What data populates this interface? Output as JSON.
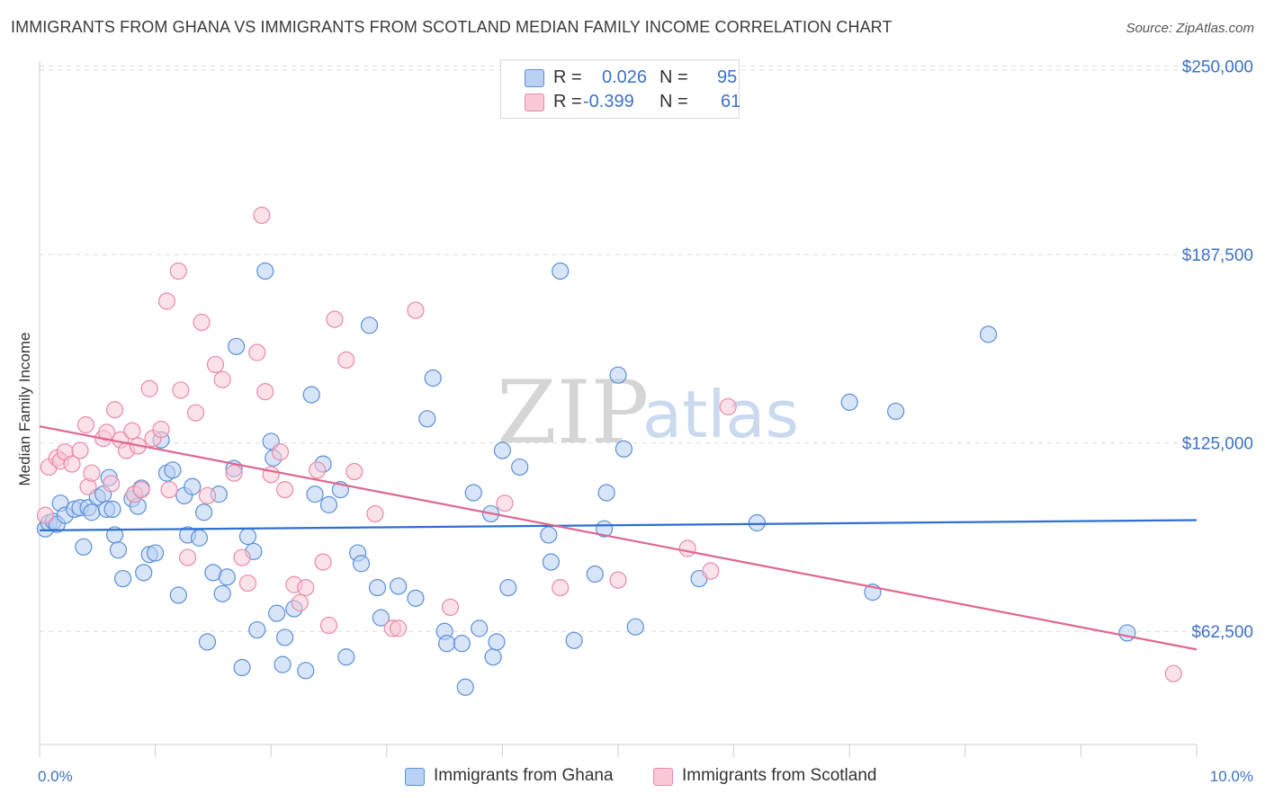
{
  "title": "IMMIGRANTS FROM GHANA VS IMMIGRANTS FROM SCOTLAND MEDIAN FAMILY INCOME CORRELATION CHART",
  "source": "Source: ZipAtlas.com",
  "watermark": {
    "part1": "ZIP",
    "part2": "atlas"
  },
  "legend": {
    "rows": [
      {
        "r_label": "R =",
        "r_value": "0.026",
        "n_label": "N =",
        "n_value": "95"
      },
      {
        "r_label": "R =",
        "r_value": "-0.399",
        "n_label": "N =",
        "n_value": "61"
      }
    ]
  },
  "bottom_legend": [
    "Immigrants from Ghana",
    "Immigrants from Scotland"
  ],
  "chart_data": {
    "type": "scatter",
    "title": "IMMIGRANTS FROM GHANA VS IMMIGRANTS FROM SCOTLAND MEDIAN FAMILY INCOME CORRELATION CHART",
    "xlabel": "",
    "ylabel": "Median Family Income",
    "xlim": [
      0,
      10
    ],
    "ylim": [
      25000,
      254000
    ],
    "x_tick_labels": [
      "0.0%",
      "10.0%"
    ],
    "y_ticks": [
      62500,
      125000,
      187500,
      250000
    ],
    "y_tick_labels": [
      "$62,500",
      "$125,000",
      "$187,500",
      "$250,000"
    ],
    "grid": true,
    "legend_position": "top-center",
    "colors": {
      "ghana_fill": "#b8d0f2",
      "ghana_stroke": "#5b8fd6",
      "ghana_line": "#2e6fcf",
      "scotland_fill": "#f8c8d6",
      "scotland_stroke": "#e88aa8",
      "scotland_line": "#e0668f",
      "tick_text": "#3d72c4"
    },
    "series": [
      {
        "name": "Immigrants from Ghana",
        "trend": {
          "x": [
            0,
            10
          ],
          "y": [
            96000,
            99400
          ]
        },
        "points": [
          [
            0.05,
            96500
          ],
          [
            0.08,
            98500
          ],
          [
            0.12,
            99000
          ],
          [
            0.15,
            98000
          ],
          [
            0.18,
            105000
          ],
          [
            0.22,
            101000
          ],
          [
            0.3,
            103000
          ],
          [
            0.35,
            103500
          ],
          [
            0.38,
            90500
          ],
          [
            0.42,
            103500
          ],
          [
            0.45,
            102000
          ],
          [
            0.5,
            107000
          ],
          [
            0.55,
            108000
          ],
          [
            0.6,
            113500
          ],
          [
            0.58,
            103000
          ],
          [
            0.63,
            103000
          ],
          [
            0.65,
            94500
          ],
          [
            0.68,
            89500
          ],
          [
            0.72,
            80000
          ],
          [
            0.8,
            106500
          ],
          [
            0.82,
            108000
          ],
          [
            0.85,
            104000
          ],
          [
            0.88,
            110000
          ],
          [
            0.9,
            82000
          ],
          [
            0.95,
            88000
          ],
          [
            1.0,
            88500
          ],
          [
            1.05,
            126000
          ],
          [
            1.1,
            115000
          ],
          [
            1.15,
            116000
          ],
          [
            1.2,
            74500
          ],
          [
            1.25,
            107500
          ],
          [
            1.28,
            94500
          ],
          [
            1.32,
            110500
          ],
          [
            1.38,
            93500
          ],
          [
            1.42,
            102000
          ],
          [
            1.45,
            59000
          ],
          [
            1.5,
            82000
          ],
          [
            1.55,
            108000
          ],
          [
            1.58,
            75000
          ],
          [
            1.62,
            80500
          ],
          [
            1.68,
            116500
          ],
          [
            1.7,
            157000
          ],
          [
            1.75,
            50500
          ],
          [
            1.8,
            94000
          ],
          [
            1.85,
            89000
          ],
          [
            1.88,
            63000
          ],
          [
            1.95,
            182000
          ],
          [
            2.0,
            125500
          ],
          [
            2.02,
            120000
          ],
          [
            2.05,
            68500
          ],
          [
            2.1,
            51500
          ],
          [
            2.12,
            60500
          ],
          [
            2.2,
            70000
          ],
          [
            2.3,
            49500
          ],
          [
            2.35,
            141000
          ],
          [
            2.38,
            108000
          ],
          [
            2.45,
            118000
          ],
          [
            2.5,
            104500
          ],
          [
            2.6,
            109500
          ],
          [
            2.65,
            54000
          ],
          [
            2.75,
            88500
          ],
          [
            2.78,
            85000
          ],
          [
            2.85,
            164000
          ],
          [
            2.92,
            77000
          ],
          [
            2.95,
            67000
          ],
          [
            3.1,
            77500
          ],
          [
            3.25,
            73500
          ],
          [
            3.35,
            133000
          ],
          [
            3.4,
            146500
          ],
          [
            3.5,
            62500
          ],
          [
            3.52,
            58500
          ],
          [
            3.65,
            58500
          ],
          [
            3.68,
            44000
          ],
          [
            3.75,
            108500
          ],
          [
            3.8,
            63500
          ],
          [
            3.9,
            101500
          ],
          [
            3.92,
            54000
          ],
          [
            3.95,
            59000
          ],
          [
            4.0,
            122500
          ],
          [
            4.05,
            77000
          ],
          [
            4.15,
            117000
          ],
          [
            4.4,
            94500
          ],
          [
            4.42,
            85500
          ],
          [
            4.5,
            182000
          ],
          [
            4.62,
            59500
          ],
          [
            4.8,
            81500
          ],
          [
            4.88,
            96500
          ],
          [
            4.9,
            108500
          ],
          [
            5.0,
            147500
          ],
          [
            5.05,
            123000
          ],
          [
            5.15,
            64000
          ],
          [
            5.7,
            80000
          ],
          [
            6.2,
            98500
          ],
          [
            7.0,
            138500
          ],
          [
            7.2,
            75500
          ],
          [
            7.4,
            135500
          ],
          [
            8.2,
            161000
          ],
          [
            9.4,
            62000
          ]
        ]
      },
      {
        "name": "Immigrants from Scotland",
        "trend": {
          "x": [
            0,
            10
          ],
          "y": [
            130500,
            56500
          ]
        },
        "points": [
          [
            0.05,
            101000
          ],
          [
            0.08,
            117000
          ],
          [
            0.15,
            120000
          ],
          [
            0.18,
            119000
          ],
          [
            0.22,
            122000
          ],
          [
            0.28,
            118000
          ],
          [
            0.35,
            122500
          ],
          [
            0.4,
            131000
          ],
          [
            0.42,
            110500
          ],
          [
            0.45,
            115000
          ],
          [
            0.55,
            126500
          ],
          [
            0.58,
            128500
          ],
          [
            0.62,
            111500
          ],
          [
            0.65,
            136000
          ],
          [
            0.7,
            126000
          ],
          [
            0.75,
            122500
          ],
          [
            0.8,
            129000
          ],
          [
            0.82,
            108000
          ],
          [
            0.85,
            124000
          ],
          [
            0.88,
            109500
          ],
          [
            0.95,
            143000
          ],
          [
            0.98,
            126500
          ],
          [
            1.05,
            129500
          ],
          [
            1.1,
            172000
          ],
          [
            1.12,
            109500
          ],
          [
            1.2,
            182000
          ],
          [
            1.22,
            142500
          ],
          [
            1.28,
            87000
          ],
          [
            1.35,
            135000
          ],
          [
            1.4,
            165000
          ],
          [
            1.45,
            107500
          ],
          [
            1.52,
            151000
          ],
          [
            1.58,
            146000
          ],
          [
            1.68,
            115000
          ],
          [
            1.75,
            87000
          ],
          [
            1.8,
            78500
          ],
          [
            1.88,
            155000
          ],
          [
            1.92,
            200500
          ],
          [
            1.95,
            142000
          ],
          [
            2.0,
            114500
          ],
          [
            2.08,
            122000
          ],
          [
            2.12,
            109500
          ],
          [
            2.2,
            78000
          ],
          [
            2.25,
            72000
          ],
          [
            2.3,
            77000
          ],
          [
            2.4,
            116000
          ],
          [
            2.45,
            85500
          ],
          [
            2.5,
            64500
          ],
          [
            2.55,
            166000
          ],
          [
            2.65,
            152500
          ],
          [
            2.72,
            115500
          ],
          [
            2.9,
            101500
          ],
          [
            3.05,
            63500
          ],
          [
            3.1,
            63500
          ],
          [
            3.25,
            169000
          ],
          [
            3.55,
            70500
          ],
          [
            4.02,
            105000
          ],
          [
            4.5,
            77000
          ],
          [
            5.0,
            79500
          ],
          [
            5.6,
            90000
          ],
          [
            5.8,
            82500
          ],
          [
            5.95,
            137000
          ],
          [
            9.8,
            48500
          ]
        ]
      }
    ]
  }
}
